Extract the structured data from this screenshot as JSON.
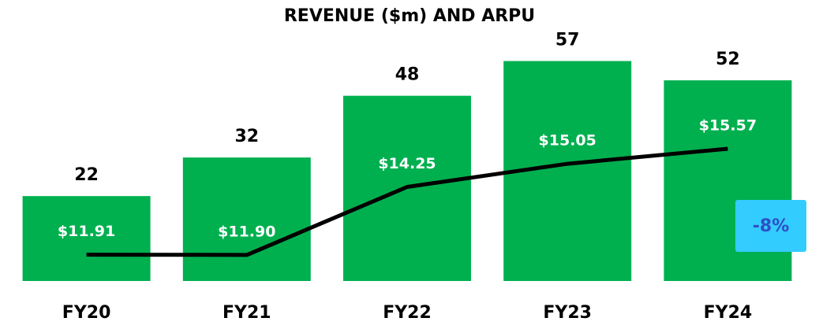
{
  "chart_data": {
    "type": "bar",
    "title": "REVENUE ($m) AND ARPU",
    "categories": [
      "FY20",
      "FY21",
      "FY22",
      "FY23",
      "FY24"
    ],
    "series": [
      {
        "type": "bar",
        "color": "#00b04f",
        "values": [
          22,
          32,
          48,
          57,
          52
        ]
      },
      {
        "type": "line",
        "axis": "y2",
        "color": "#000000",
        "values": [
          11.91,
          11.9,
          14.25,
          15.05,
          15.57
        ],
        "value_labels": [
          "$11.91",
          "$11.90",
          "$14.25",
          "$15.05",
          "$15.57"
        ]
      }
    ],
    "ylim": [
      0,
      72
    ],
    "y2lim": [
      11,
      20.6
    ],
    "annotations": [
      {
        "text": "-8%",
        "color": "#2e4fc4",
        "background": "#33ccff"
      }
    ]
  }
}
